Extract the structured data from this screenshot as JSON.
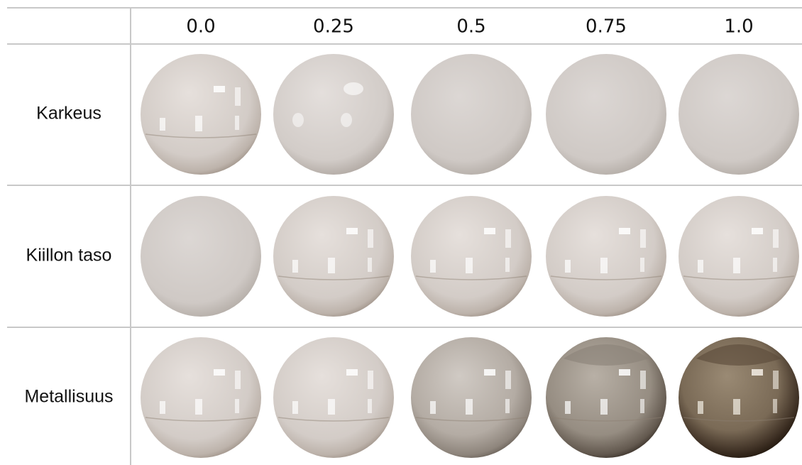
{
  "table": {
    "columns": [
      "0.0",
      "0.25",
      "0.5",
      "0.75",
      "1.0"
    ],
    "rows": [
      "Karkeus",
      "Kiillon taso",
      "Metallisuus"
    ]
  }
}
